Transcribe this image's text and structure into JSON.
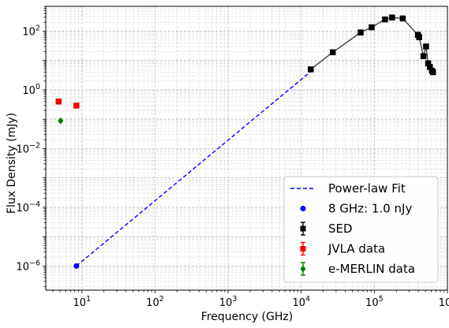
{
  "chart_data": {
    "type": "scatter",
    "xlabel": "Frequency (GHz)",
    "ylabel": "Flux Density (mJy)",
    "xscale": "log",
    "yscale": "log",
    "xlim": [
      3.2,
      1000000
    ],
    "ylim": [
      1.5e-07,
      700
    ],
    "grid": true,
    "legend_position": "bottom-right",
    "x_ticks": [
      {
        "value": 10,
        "base": "10",
        "exp": "1"
      },
      {
        "value": 100,
        "base": "10",
        "exp": "2"
      },
      {
        "value": 1000,
        "base": "10",
        "exp": "3"
      },
      {
        "value": 10000,
        "base": "10",
        "exp": "4"
      },
      {
        "value": 100000,
        "base": "10",
        "exp": "5"
      },
      {
        "value": 1000000,
        "base": "10",
        "exp": "6"
      }
    ],
    "y_ticks": [
      {
        "value": 1e-06,
        "base": "10",
        "exp": "−6"
      },
      {
        "value": 0.0001,
        "base": "10",
        "exp": "−4"
      },
      {
        "value": 0.01,
        "base": "10",
        "exp": "−2"
      },
      {
        "value": 1,
        "base": "10",
        "exp": "0"
      },
      {
        "value": 100,
        "base": "10",
        "exp": "2"
      }
    ],
    "series": [
      {
        "name": "Power-law Fit",
        "kind": "line",
        "style": "dashed",
        "color": "#0000ff",
        "x": [
          8.4,
          13500
        ],
        "y": [
          1e-06,
          4.2
        ]
      },
      {
        "name": "8 GHz: 1.0 nJy",
        "kind": "point",
        "marker": "circle",
        "color": "#0000ff",
        "x": [
          8.4
        ],
        "y": [
          1e-06
        ]
      },
      {
        "name": "SED",
        "kind": "errorbar",
        "marker": "square",
        "color": "#000000",
        "line_color": "#404040",
        "x": [
          13500,
          27000,
          65000,
          92000,
          140000,
          175000,
          245000,
          395000,
          410000,
          470000,
          510000,
          545000,
          575000,
          615000,
          635000
        ],
        "y": [
          5,
          19,
          90,
          135,
          250,
          290,
          270,
          75,
          62,
          14,
          30,
          8,
          6,
          4.5,
          4
        ]
      },
      {
        "name": "JVLA data",
        "kind": "errorbar",
        "marker": "square",
        "color": "#ff0000",
        "x": [
          4.8,
          8.4
        ],
        "y": [
          0.4,
          0.29
        ]
      },
      {
        "name": "e-MERLIN data",
        "kind": "errorbar",
        "marker": "diamond",
        "color": "#008000",
        "x": [
          5.1
        ],
        "y": [
          0.088
        ]
      }
    ]
  }
}
